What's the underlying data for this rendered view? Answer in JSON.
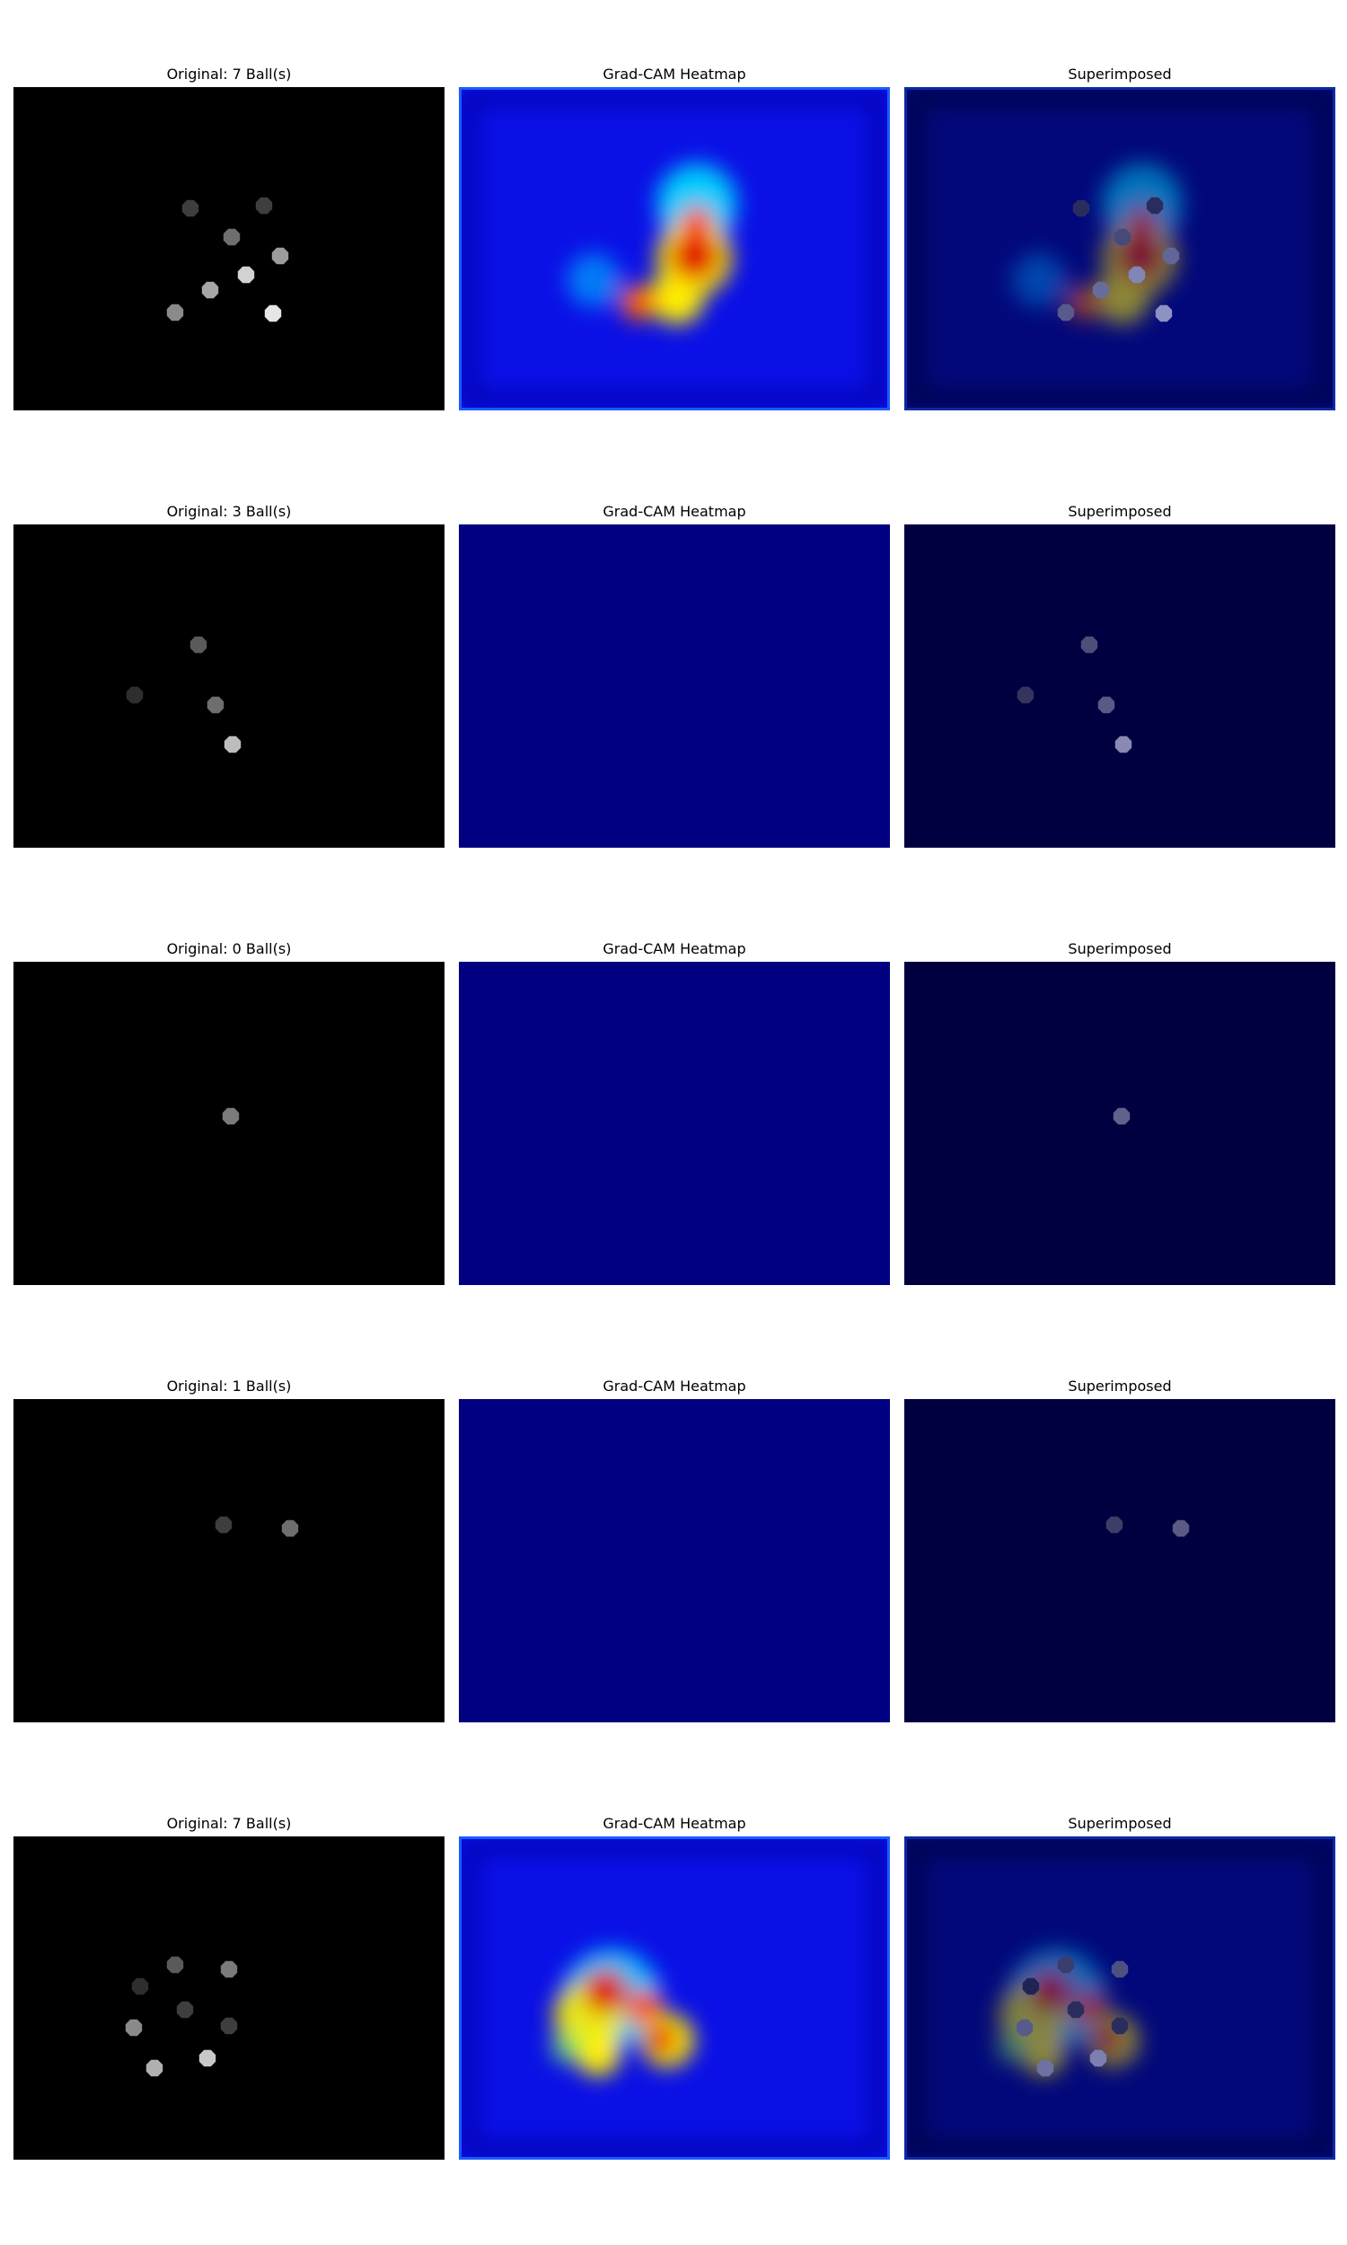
{
  "rows": [
    {
      "original_title": "Original: 7 Ball(s)",
      "heatmap_title": "Grad-CAM Heatmap",
      "superimposed_title": "Superimposed",
      "balls": [
        [
          197,
          135,
          "#3e3e3e"
        ],
        [
          279,
          132,
          "#3e3e3e"
        ],
        [
          243,
          167,
          "#6e6e6e"
        ],
        [
          297,
          188,
          "#9c9c9c"
        ],
        [
          259,
          209,
          "#d2d2d2"
        ],
        [
          219,
          226,
          "#a6a6a6"
        ],
        [
          180,
          251,
          "#8a8a8a"
        ],
        [
          289,
          252,
          "#e6e6e6"
        ]
      ],
      "blobs": [
        [
          265,
          130,
          45,
          "#00e0ff",
          0.9
        ],
        [
          262,
          190,
          42,
          "#ffee00",
          1.0
        ],
        [
          243,
          234,
          30,
          "#ffee00",
          1.0
        ],
        [
          263,
          188,
          28,
          "#e01800",
          1.0
        ],
        [
          265,
          151,
          18,
          "#ff3a00",
          1.0
        ],
        [
          200,
          240,
          20,
          "#ff6000",
          1.0
        ],
        [
          150,
          215,
          30,
          "#00a8ff",
          0.7
        ]
      ],
      "cam_active": true
    },
    {
      "original_title": "Original: 3 Ball(s)",
      "heatmap_title": "Grad-CAM Heatmap",
      "superimposed_title": "Superimposed",
      "balls": [
        [
          206,
          134,
          "#5a5a5a"
        ],
        [
          135,
          190,
          "#2e2e2e"
        ],
        [
          225,
          201,
          "#6e6e6e"
        ],
        [
          244,
          245,
          "#bdbdbd"
        ]
      ],
      "blobs": [],
      "cam_active": false
    },
    {
      "original_title": "Original: 0 Ball(s)",
      "heatmap_title": "Grad-CAM Heatmap",
      "superimposed_title": "Superimposed",
      "balls": [
        [
          242,
          172,
          "#7a7a7a"
        ]
      ],
      "blobs": [],
      "cam_active": false
    },
    {
      "original_title": "Original: 1 Ball(s)",
      "heatmap_title": "Grad-CAM Heatmap",
      "superimposed_title": "Superimposed",
      "balls": [
        [
          234,
          140,
          "#3e3e3e"
        ],
        [
          308,
          144,
          "#6e6e6e"
        ]
      ],
      "blobs": [],
      "cam_active": false
    },
    {
      "original_title": "Original: 7 Ball(s)",
      "heatmap_title": "Grad-CAM Heatmap",
      "superimposed_title": "Superimposed",
      "balls": [
        [
          180,
          143,
          "#5a5a5a"
        ],
        [
          240,
          148,
          "#7a7a7a"
        ],
        [
          141,
          167,
          "#2e2e2e"
        ],
        [
          191,
          193,
          "#3e3e3e"
        ],
        [
          134,
          213,
          "#8a8a8a"
        ],
        [
          240,
          211,
          "#3e3e3e"
        ],
        [
          216,
          247,
          "#c8c8c8"
        ],
        [
          157,
          258,
          "#b0b0b0"
        ]
      ],
      "blobs": [
        [
          170,
          180,
          55,
          "#00e0ff",
          0.8
        ],
        [
          145,
          200,
          40,
          "#ffee00",
          0.9
        ],
        [
          163,
          172,
          25,
          "#e01800",
          1.0
        ],
        [
          207,
          191,
          20,
          "#ff3a00",
          1.0
        ],
        [
          232,
          227,
          30,
          "#ffee00",
          1.0
        ],
        [
          225,
          226,
          18,
          "#e01800",
          1.0
        ],
        [
          155,
          242,
          25,
          "#ffee00",
          1.0
        ],
        [
          120,
          235,
          18,
          "#80ff60",
          0.7
        ]
      ],
      "cam_active": true
    }
  ]
}
